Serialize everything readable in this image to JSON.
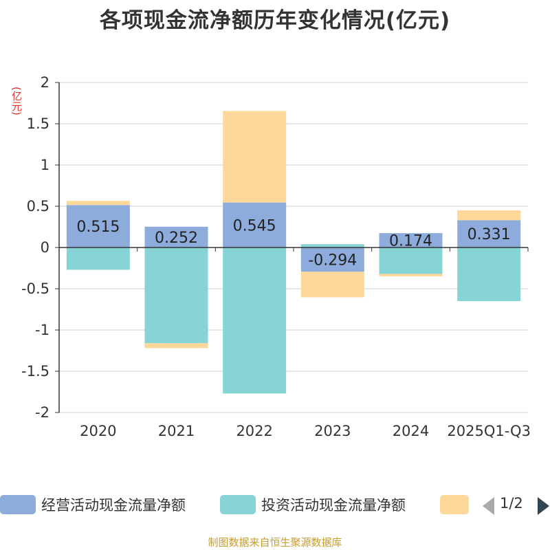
{
  "title": "各项现金流净额历年变化情况(亿元)",
  "unit": "(亿元)",
  "source": "制图数据来自恒生聚源数据库",
  "legend_pager": {
    "page_text": "1/2",
    "prev_icon": "triangle-left-icon",
    "next_icon": "triangle-right-icon"
  },
  "colors": {
    "operating": "#8eacdb",
    "investing": "#87d4d6",
    "financing": "#fdd89a",
    "axis": "#333333",
    "grid": "#cccccc"
  },
  "chart_data": {
    "type": "bar",
    "stacked": true,
    "title": "各项现金流净额历年变化情况(亿元)",
    "ylabel": "(亿元)",
    "ylim": [
      -2,
      2
    ],
    "yticks": [
      2,
      1.5,
      1,
      0.5,
      0,
      -0.5,
      -1,
      -1.5,
      -2
    ],
    "ytick_labels": [
      "2",
      "1.5",
      "1",
      "0.5",
      "0",
      "-0.5",
      "-1",
      "-1.5",
      "-2"
    ],
    "grid": true,
    "legend_position": "bottom",
    "categories": [
      "2020",
      "2021",
      "2022",
      "2023",
      "2024",
      "2025Q1-Q3"
    ],
    "series": [
      {
        "name": "经营活动现金流量净额",
        "values": [
          0.515,
          0.252,
          0.545,
          -0.294,
          0.174,
          0.331
        ],
        "labels": [
          "0.515",
          "0.252",
          "0.545",
          "-0.294",
          "0.174",
          "0.331"
        ]
      },
      {
        "name": "投资活动现金流量净额",
        "values": [
          -0.27,
          -1.16,
          -1.77,
          0.04,
          -0.32,
          -0.65
        ]
      },
      {
        "name": "",
        "values": [
          0.05,
          -0.06,
          1.11,
          -0.31,
          -0.03,
          0.12
        ]
      }
    ]
  }
}
